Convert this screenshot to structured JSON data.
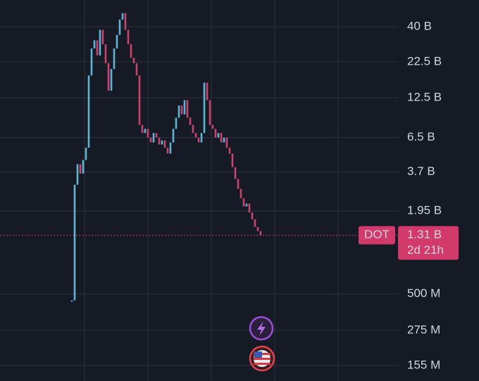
{
  "chart_data": {
    "type": "candlestick",
    "symbol": "DOT",
    "countdown": "2d 21h",
    "last_price": {
      "value": 1.31,
      "label": "1.31 B"
    },
    "log_scale": true,
    "grid": true,
    "up_color": "#5fb4d6",
    "down_color": "#c8446e",
    "accent_color": "#d23a6c",
    "ylim": [
      0.12,
      62
    ],
    "yticks": [
      {
        "value": 40,
        "label": "40 B"
      },
      {
        "value": 22.5,
        "label": "22.5 B"
      },
      {
        "value": 12.5,
        "label": "12.5 B"
      },
      {
        "value": 6.5,
        "label": "6.5 B"
      },
      {
        "value": 3.7,
        "label": "3.7 B"
      },
      {
        "value": 1.95,
        "label": "1.95 B"
      },
      {
        "value": 0.5,
        "label": "500 M"
      },
      {
        "value": 0.275,
        "label": "275 M"
      },
      {
        "value": 0.155,
        "label": "155 M"
      }
    ],
    "values": [
      0.45,
      3.0,
      4.2,
      3.6,
      4.5,
      5.5,
      18,
      28,
      32,
      25,
      38,
      30,
      22,
      14,
      20,
      28,
      35,
      45,
      50,
      38,
      30,
      24,
      22,
      18,
      8,
      7,
      7.5,
      6.5,
      6,
      7,
      6.5,
      5.8,
      6.2,
      5.5,
      5,
      6,
      7.5,
      9,
      11,
      9.5,
      12,
      9,
      8,
      7,
      6.5,
      6,
      7,
      16,
      12,
      8,
      7.5,
      6.5,
      7,
      6,
      6.5,
      5.5,
      5,
      4,
      3.3,
      2.8,
      2.4,
      2.1,
      2.2,
      1.9,
      1.7,
      1.5,
      1.4,
      1.31
    ]
  }
}
